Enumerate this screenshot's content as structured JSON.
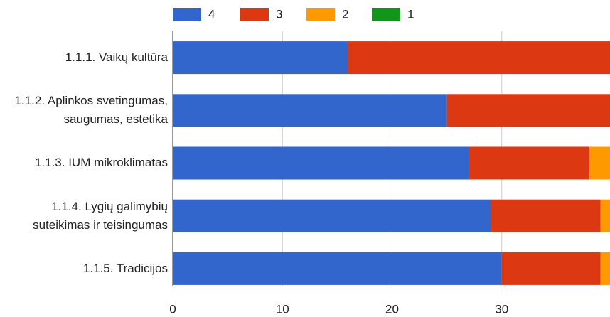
{
  "chart_data": {
    "type": "stacked_bar_horizontal",
    "categories": [
      "1.1.1. Vaikų kultūra",
      "1.1.2. Aplinkos svetingumas, saugumas, estetika",
      "1.1.3. IUM mikroklimatas",
      "1.1.4. Lygių galimybių suteikimas ir teisingumas",
      "1.1.5. Tradicijos"
    ],
    "series": [
      {
        "name": "4",
        "color": "#3366cc",
        "values": [
          16,
          25,
          27,
          29,
          30
        ]
      },
      {
        "name": "3",
        "color": "#dc3912",
        "values": [
          24,
          15,
          11,
          10,
          9
        ]
      },
      {
        "name": "2",
        "color": "#ff9900",
        "values": [
          0,
          0,
          2,
          1,
          1
        ]
      },
      {
        "name": "1",
        "color": "#109618",
        "values": [
          0,
          0,
          0,
          0,
          0
        ]
      }
    ],
    "xlim": [
      0,
      40
    ],
    "xticks": [
      0,
      10,
      20,
      30
    ],
    "grid": true,
    "legend": "top"
  }
}
